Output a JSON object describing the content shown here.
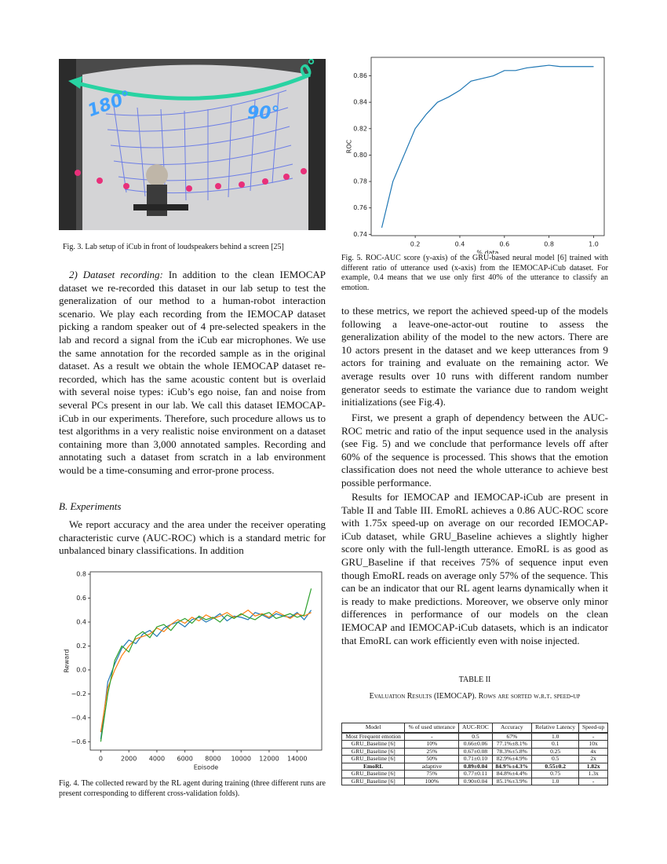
{
  "figure3": {
    "labels": [
      "180°",
      "90°",
      "0°"
    ],
    "caption": "Fig. 3.   Lab setup of iCub in front of loudspeakers behind a screen [25]"
  },
  "chart_data": [
    {
      "type": "line",
      "xlabel": "% data",
      "ylabel": "ROC",
      "x": [
        0.05,
        0.1,
        0.15,
        0.2,
        0.25,
        0.3,
        0.35,
        0.4,
        0.45,
        0.5,
        0.55,
        0.6,
        0.65,
        0.7,
        0.75,
        0.8,
        0.85,
        0.9,
        0.95,
        1.0
      ],
      "values": [
        0.745,
        0.78,
        0.8,
        0.82,
        0.831,
        0.84,
        0.844,
        0.849,
        0.856,
        0.858,
        0.86,
        0.864,
        0.864,
        0.866,
        0.867,
        0.868,
        0.867,
        0.867,
        0.867,
        0.867
      ],
      "color": "#1f77b4",
      "xlim": [
        0.0025,
        1.0475
      ],
      "xticks": [
        0.2,
        0.4,
        0.6,
        0.8,
        {
          "value": 1,
          "label": "1.0"
        }
      ],
      "ylim": [
        0.739,
        0.874
      ],
      "yticks": [
        0.74,
        0.76,
        0.78,
        {
          "value": 0.8,
          "label": "0.80"
        },
        0.82,
        0.84,
        0.86
      ]
    },
    {
      "type": "line",
      "xlabel": "Episode",
      "ylabel": "Reward",
      "x": [
        0,
        500,
        1000,
        1500,
        2000,
        2500,
        3000,
        3500,
        4000,
        4500,
        5000,
        5500,
        6000,
        6500,
        7000,
        7500,
        8000,
        8500,
        9000,
        9500,
        10000,
        10500,
        11000,
        11500,
        12000,
        12500,
        13000,
        13500,
        14000,
        14500,
        15000
      ],
      "series": [
        {
          "color": "#1f77b4",
          "values": [
            -0.58,
            -0.1,
            0.05,
            0.18,
            0.25,
            0.22,
            0.3,
            0.33,
            0.28,
            0.35,
            0.38,
            0.4,
            0.36,
            0.42,
            0.44,
            0.4,
            0.43,
            0.47,
            0.41,
            0.45,
            0.44,
            0.42,
            0.48,
            0.46,
            0.43,
            0.47,
            0.45,
            0.44,
            0.48,
            0.42,
            0.5
          ]
        },
        {
          "color": "#ff7f0e",
          "values": [
            -0.52,
            -0.15,
            0.0,
            0.12,
            0.2,
            0.26,
            0.28,
            0.3,
            0.35,
            0.32,
            0.38,
            0.42,
            0.39,
            0.44,
            0.41,
            0.46,
            0.43,
            0.45,
            0.48,
            0.44,
            0.46,
            0.5,
            0.45,
            0.47,
            0.44,
            0.49,
            0.46,
            0.43,
            0.47,
            0.45,
            0.48
          ]
        },
        {
          "color": "#2ca02c",
          "values": [
            -0.6,
            -0.2,
            0.08,
            0.2,
            0.15,
            0.28,
            0.32,
            0.27,
            0.36,
            0.38,
            0.33,
            0.4,
            0.43,
            0.39,
            0.45,
            0.42,
            0.44,
            0.4,
            0.46,
            0.43,
            0.47,
            0.44,
            0.42,
            0.46,
            0.48,
            0.43,
            0.45,
            0.47,
            0.44,
            0.46,
            0.68
          ]
        }
      ],
      "xlim": [
        -750,
        15750
      ],
      "xticks": [
        0,
        2000,
        4000,
        6000,
        8000,
        10000,
        12000,
        14000
      ],
      "ylim": [
        -0.67,
        0.82
      ],
      "yticks": [
        {
          "value": -0.6,
          "label": "−0.6"
        },
        {
          "value": -0.4,
          "label": "−0.4"
        },
        {
          "value": -0.2,
          "label": "−0.2"
        },
        {
          "value": 0,
          "label": "0.0"
        },
        0.2,
        0.4,
        0.6,
        0.8
      ]
    }
  ],
  "figure5_caption": "Fig. 5.    ROC-AUC score (y-axis) of the GRU-based neural model [6] trained with different ratio of utterance used (x-axis) from the IEMOCAP-iCub dataset. For example, 0.4 means that we use only first 40% of the utterance to classify an emotion.",
  "figure4_caption": "Fig. 4.   The collected reward by the RL agent during training (three different runs are present corresponding to different cross-validation folds).",
  "left_column": {
    "p1_heading": "2) Dataset recording:",
    "p1": "In addition to the clean IEMOCAP dataset we re-recorded this dataset in our lab setup to test the generalization of our method to a human-robot interaction scenario. We play each recording from the IEMOCAP dataset picking a random speaker out of 4 pre-selected speakers in the lab and record a signal from the iCub ear microphones. We use the same annotation for the recorded sample as in the original dataset. As a result we obtain the whole IEMOCAP dataset re-recorded, which has the same acoustic content but is overlaid with several noise types: iCub’s ego noise, fan and noise from several PCs present in our lab. We call this dataset IEMOCAP-iCub in our experiments. Therefore, such procedure allows us to test algorithms in a very realistic noise environment on a dataset containing more than 3,000 annotated samples. Recording and annotating such a dataset from scratch in a lab environment would be a time-consuming and error-prone process.",
    "section": "B. Experiments",
    "p2": "We report accuracy and the area under the receiver operating characteristic curve (AUC-ROC) which is a standard metric for unbalanced binary classifications. In addition"
  },
  "right_column": {
    "p3": "to these metrics, we report the achieved speed-up of the models following a leave-one-actor-out routine to assess the generalization ability of the model to the new actors. There are 10 actors present in the dataset and we keep utterances from 9 actors for training and evaluate on the remaining actor. We average results over 10 runs with different random number generator seeds to estimate the variance due to random weight initializations (see Fig.4).",
    "p4": "First, we present a graph of dependency between the AUC-ROC metric and ratio of the input sequence used in the analysis (see Fig. 5) and we conclude that performance levels off after 60% of the sequence is processed. This shows that the emotion classification does not need the whole utterance to achieve best possible performance.",
    "p5": "Results for IEMOCAP and IEMOCAP-iCub are present in Table II and Table III. EmoRL achieves a 0.86 AUC-ROC score with 1.75x speed-up on average on our recorded IEMOCAP-iCub dataset, while GRU_Baseline achieves a slightly higher score only with the full-length utterance. EmoRL is as good as GRU_Baseline if that receives 75% of sequence input even though EmoRL reads on average only 57% of the sequence. This can be an indicator that our RL agent learns dynamically when it is ready to make predictions. Moreover, we observe only minor differences in performance of our models on the clean IEMOCAP and IEMOCAP-iCub datasets, which is an indicator that EmoRL can work efficiently even with noise injected."
  },
  "table": {
    "label": "TABLE II",
    "caption": "Evaluation Results (IEMOCAP). Rows are sorted w.r.t. speed-up",
    "header": [
      "Model",
      "% of used utterance",
      "AUC-ROC",
      "Accuracy",
      "Relative Latency",
      "Speed-up"
    ],
    "rows": [
      [
        "Most Frequent emotion",
        "-",
        "0.5",
        "67%",
        "1.0",
        "-"
      ],
      [
        "GRU_Baseline [6]",
        "10%",
        "0.66±0.06",
        "77.1%±8.1%",
        "0.1",
        "10x"
      ],
      [
        "GRU_Baseline [6]",
        "25%",
        "0.67±0.08",
        "78.3%±5.8%",
        "0.25",
        "4x"
      ],
      [
        "GRU_Baseline [6]",
        "50%",
        "0.71±0.10",
        "82.9%±4.9%",
        "0.5",
        "2x"
      ],
      [
        "EmoRL",
        "adaptive",
        "0.89±0.04",
        "84.9%±4.3%",
        "0.55±0.2",
        "1.82x"
      ],
      [
        "GRU_Baseline [6]",
        "75%",
        "0.77±0.11",
        "84.8%±4.4%",
        "0.75",
        "1.3x"
      ],
      [
        "GRU_Baseline [6]",
        "100%",
        "0.90±0.04",
        "85.1%±3.9%",
        "1.0",
        "-"
      ]
    ]
  }
}
